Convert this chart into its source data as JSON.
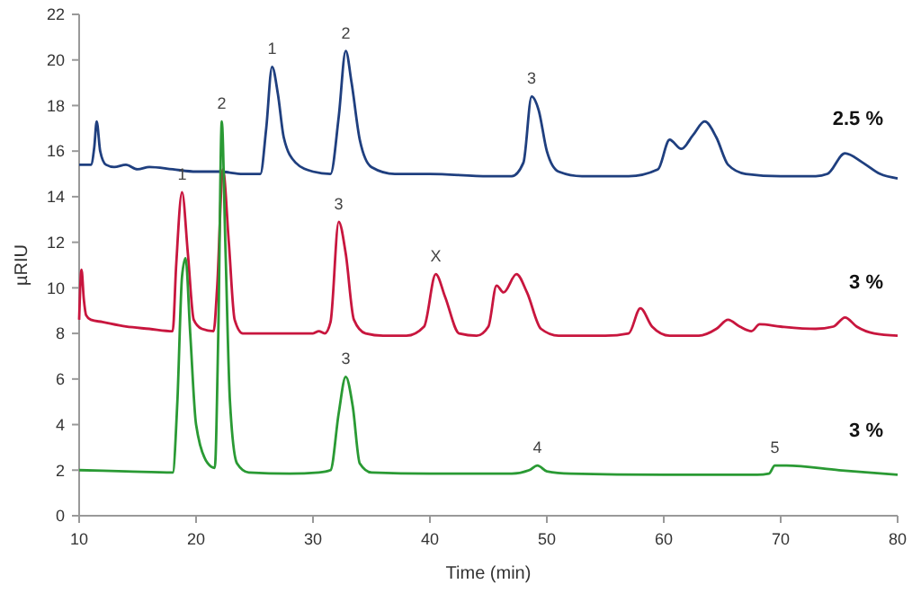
{
  "chart_data": {
    "type": "line",
    "xlabel": "Time (min)",
    "ylabel": "µRIU",
    "xlim": [
      10,
      80
    ],
    "xticks": [
      10,
      20,
      30,
      40,
      50,
      60,
      70,
      80
    ],
    "ylim": [
      0,
      22
    ],
    "yticks": [
      0,
      2,
      4,
      6,
      8,
      10,
      12,
      14,
      16,
      18,
      20,
      22
    ],
    "grid": false,
    "marker": "none",
    "line_style": "solid",
    "series": [
      {
        "name": "2.5 %",
        "color": "#1f3f7f",
        "x": [
          10,
          11,
          11.3,
          11.5,
          11.8,
          12.3,
          13,
          14,
          15,
          16,
          18,
          20,
          22,
          24,
          25.5,
          26,
          26.5,
          27,
          27.5,
          28.5,
          30,
          31.5,
          32.2,
          32.8,
          33.3,
          34,
          35,
          37,
          40,
          45,
          47,
          48,
          48.7,
          49.3,
          50,
          51,
          53,
          57,
          59.5,
          60.5,
          61.5,
          62.5,
          63.5,
          64.5,
          65.5,
          67,
          70,
          73,
          74,
          75.5,
          77,
          78.5,
          80
        ],
        "values": [
          15.4,
          15.4,
          16.2,
          17.3,
          16.0,
          15.4,
          15.3,
          15.4,
          15.2,
          15.3,
          15.2,
          15.1,
          15.1,
          15.0,
          15.0,
          17.0,
          19.7,
          18.5,
          16.6,
          15.5,
          15.1,
          15.0,
          17.5,
          20.4,
          19.0,
          16.5,
          15.3,
          15.0,
          15.0,
          14.9,
          14.9,
          15.5,
          18.4,
          17.8,
          16.0,
          15.1,
          14.9,
          14.9,
          15.2,
          16.5,
          16.1,
          16.7,
          17.3,
          16.6,
          15.4,
          15.0,
          14.9,
          14.9,
          15.0,
          15.9,
          15.5,
          15.0,
          14.8
        ]
      },
      {
        "name": "3 %",
        "color": "#c8163e",
        "x": [
          10,
          10.2,
          10.4,
          10.6,
          11,
          12,
          14,
          16,
          18,
          18.3,
          18.8,
          19.3,
          19.8,
          20.5,
          21.5,
          21.8,
          22.3,
          22.8,
          23.3,
          24,
          26,
          30,
          30.5,
          31,
          31.5,
          32.2,
          32.8,
          33.5,
          34.5,
          36,
          38,
          39.5,
          40.5,
          41.3,
          42.5,
          44,
          45,
          45.7,
          46.3,
          47.4,
          48.3,
          49.5,
          51,
          55,
          57,
          58,
          59,
          60.5,
          63,
          64.5,
          65.5,
          66.5,
          67.5,
          68.2,
          70,
          73,
          74.5,
          75.5,
          76.5,
          78,
          80
        ],
        "values": [
          8.6,
          10.8,
          9.5,
          8.8,
          8.6,
          8.5,
          8.3,
          8.2,
          8.1,
          11,
          14.2,
          11.5,
          8.6,
          8.2,
          8.1,
          10,
          15.2,
          12,
          8.6,
          8.0,
          8.0,
          8.0,
          8.1,
          8.0,
          8.5,
          12.9,
          11.5,
          8.6,
          8.0,
          7.9,
          7.9,
          8.3,
          10.6,
          9.6,
          8.0,
          7.9,
          8.3,
          10.1,
          9.8,
          10.6,
          9.8,
          8.2,
          7.9,
          7.9,
          8.0,
          9.1,
          8.3,
          7.9,
          7.9,
          8.2,
          8.6,
          8.3,
          8.1,
          8.4,
          8.3,
          8.2,
          8.3,
          8.7,
          8.3,
          8.0,
          7.9
        ]
      },
      {
        "name": "3 %",
        "color": "#2a9a34",
        "x": [
          10,
          14,
          18,
          18.4,
          18.8,
          19.1,
          19.5,
          20,
          21,
          21.6,
          21.9,
          22.2,
          22.5,
          22.9,
          23.5,
          24.5,
          28,
          30.5,
          31.5,
          32.2,
          32.8,
          33.4,
          34,
          35,
          40,
          47,
          48.5,
          49.2,
          50,
          52,
          60,
          68,
          69,
          69.5,
          70.5,
          75,
          80
        ],
        "values": [
          2.0,
          1.95,
          1.9,
          5,
          10.5,
          11.3,
          8,
          4,
          2.3,
          2.1,
          8,
          17.3,
          12,
          5,
          2.3,
          1.9,
          1.85,
          1.9,
          2.0,
          4.5,
          6.1,
          4.8,
          2.3,
          1.9,
          1.85,
          1.85,
          2.0,
          2.2,
          1.95,
          1.85,
          1.8,
          1.8,
          1.85,
          2.2,
          2.2,
          2.0,
          1.8
        ]
      }
    ],
    "annotations": [
      {
        "text": "1",
        "x": 18.8,
        "y": 14.2
      },
      {
        "text": "2",
        "x": 22.2,
        "y": 17.3
      },
      {
        "text": "1",
        "x": 26.5,
        "y": 19.7
      },
      {
        "text": "2",
        "x": 32.8,
        "y": 20.4
      },
      {
        "text": "3",
        "x": 48.7,
        "y": 18.4
      },
      {
        "text": "3",
        "x": 32.2,
        "y": 12.9
      },
      {
        "text": "X",
        "x": 40.5,
        "y": 10.6
      },
      {
        "text": "3",
        "x": 32.8,
        "y": 6.1
      },
      {
        "text": "4",
        "x": 49.2,
        "y": 2.2
      },
      {
        "text": "5",
        "x": 69.5,
        "y": 2.2
      }
    ]
  }
}
